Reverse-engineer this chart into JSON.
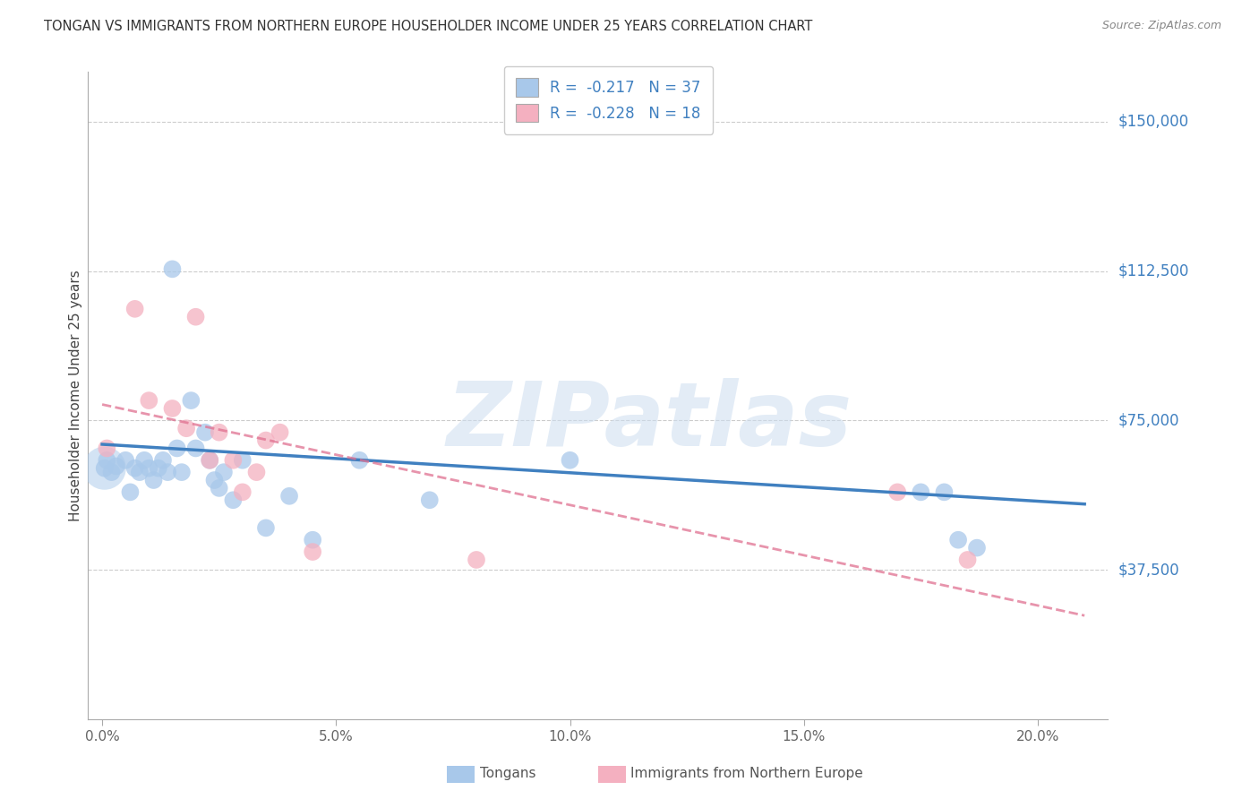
{
  "title": "TONGAN VS IMMIGRANTS FROM NORTHERN EUROPE HOUSEHOLDER INCOME UNDER 25 YEARS CORRELATION CHART",
  "source": "Source: ZipAtlas.com",
  "ylabel": "Householder Income Under 25 years",
  "xtick_labels": [
    "0.0%",
    "5.0%",
    "10.0%",
    "15.0%",
    "20.0%"
  ],
  "xtick_vals": [
    0.0,
    5.0,
    10.0,
    15.0,
    20.0
  ],
  "ytick_labels": [
    "$37,500",
    "$75,000",
    "$112,500",
    "$150,000"
  ],
  "ytick_vals": [
    37500,
    75000,
    112500,
    150000
  ],
  "ylim": [
    0,
    162500
  ],
  "xlim": [
    -0.3,
    21.5
  ],
  "blue_label": "Tongans",
  "pink_label": "Immigrants from Northern Europe",
  "blue_R": "-0.217",
  "blue_N": "37",
  "pink_R": "-0.228",
  "pink_N": "18",
  "blue_color": "#a8c8ea",
  "pink_color": "#f4b0c0",
  "blue_line_color": "#4080c0",
  "pink_line_color": "#e07090",
  "watermark_text": "ZIPatlas",
  "tongans_x": [
    0.05,
    0.1,
    0.2,
    0.3,
    0.5,
    0.6,
    0.7,
    0.8,
    0.9,
    1.0,
    1.1,
    1.2,
    1.3,
    1.4,
    1.6,
    1.7,
    1.9,
    2.0,
    2.2,
    2.3,
    2.4,
    2.5,
    2.6,
    2.8,
    3.0,
    3.5,
    4.0,
    4.5,
    5.5,
    7.0,
    10.0,
    17.5,
    18.0,
    18.3,
    18.7
  ],
  "tongans_y": [
    63000,
    65000,
    62000,
    63500,
    65000,
    57000,
    63000,
    62000,
    65000,
    63000,
    60000,
    63000,
    65000,
    62000,
    68000,
    62000,
    80000,
    68000,
    72000,
    65000,
    60000,
    58000,
    62000,
    55000,
    65000,
    48000,
    56000,
    45000,
    65000,
    55000,
    65000,
    57000,
    57000,
    45000,
    43000
  ],
  "tongans_big_x": [
    0.05
  ],
  "tongans_big_y": [
    63000
  ],
  "tongans_big_s": [
    1200
  ],
  "tongans_high_x": [
    1.5
  ],
  "tongans_high_y": [
    113000
  ],
  "pink_x": [
    0.1,
    0.7,
    1.0,
    1.5,
    1.8,
    2.0,
    2.3,
    2.5,
    2.8,
    3.0,
    3.3,
    3.5,
    3.8,
    4.5,
    8.0,
    17.0,
    18.5
  ],
  "pink_y": [
    68000,
    103000,
    80000,
    78000,
    73000,
    101000,
    65000,
    72000,
    65000,
    57000,
    62000,
    70000,
    72000,
    42000,
    40000,
    57000,
    40000
  ],
  "blue_trend_x": [
    0.0,
    21.0
  ],
  "blue_trend_y": [
    69000,
    54000
  ],
  "pink_trend_x": [
    0.0,
    21.0
  ],
  "pink_trend_y": [
    79000,
    26000
  ],
  "legend_text_color": "#4080c0",
  "title_color": "#333333",
  "source_color": "#888888",
  "grid_color": "#cccccc",
  "axis_color": "#aaaaaa",
  "ylabel_color": "#444444",
  "xtick_color": "#666666",
  "ytick_right_color": "#4080c0"
}
